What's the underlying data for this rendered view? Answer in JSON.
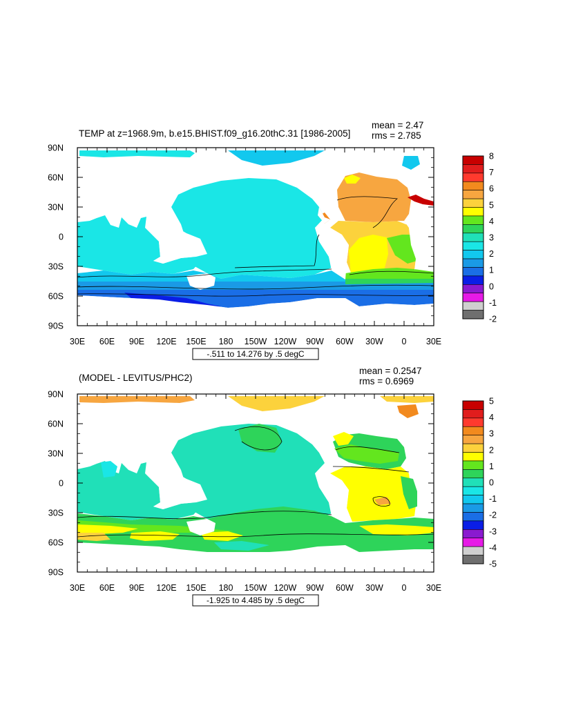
{
  "panels": [
    {
      "title": "TEMP at z=1968.9m, b.e15.BHIST.f09_g16.20thC.31 [1986-2005]",
      "mean_label": "mean = 2.47",
      "rms_label": "rms = 2.785",
      "range_label": "-.511 to 14.276 by .5 degC",
      "colorbar_labels": [
        "8",
        "7",
        "6",
        "5",
        "4",
        "3",
        "2",
        "1",
        "0",
        "-1",
        "-2"
      ],
      "colorbar_colors": [
        "#c80000",
        "#e11d1d",
        "#ff3a2e",
        "#f28a1e",
        "#f7a640",
        "#fcd23c",
        "#ffff00",
        "#63e61e",
        "#2ed45a",
        "#20e0b8",
        "#1ae6e6",
        "#12c8ee",
        "#1a9ae6",
        "#1a6ee6",
        "#0a1ee6",
        "#8a1ad0",
        "#e61ae6",
        "#cfcfcf",
        "#6f6f6f"
      ]
    },
    {
      "title": "(MODEL - LEVITUS/PHC2)",
      "mean_label": "mean = 0.2547",
      "rms_label": "rms = 0.6969",
      "range_label": "-1.925 to 4.485 by .5 degC",
      "colorbar_labels": [
        "5",
        "4",
        "3",
        "2",
        "1",
        "0",
        "-1",
        "-2",
        "-3",
        "-4",
        "-5"
      ],
      "colorbar_colors": [
        "#c80000",
        "#e11d1d",
        "#ff3a2e",
        "#f28a1e",
        "#f7a640",
        "#fcd23c",
        "#ffff00",
        "#63e61e",
        "#2ed45a",
        "#20e0b8",
        "#1ae6e6",
        "#12c8ee",
        "#1a9ae6",
        "#1a6ee6",
        "#0a1ee6",
        "#8a1ad0",
        "#e61ae6",
        "#cfcfcf",
        "#6f6f6f"
      ]
    }
  ],
  "lon_labels": [
    "30E",
    "60E",
    "90E",
    "120E",
    "150E",
    "180",
    "150W",
    "120W",
    "90W",
    "60W",
    "30W",
    "0",
    "30E"
  ],
  "lat_labels": [
    "90N",
    "60N",
    "30N",
    "0",
    "30S",
    "60S",
    "90S"
  ]
}
